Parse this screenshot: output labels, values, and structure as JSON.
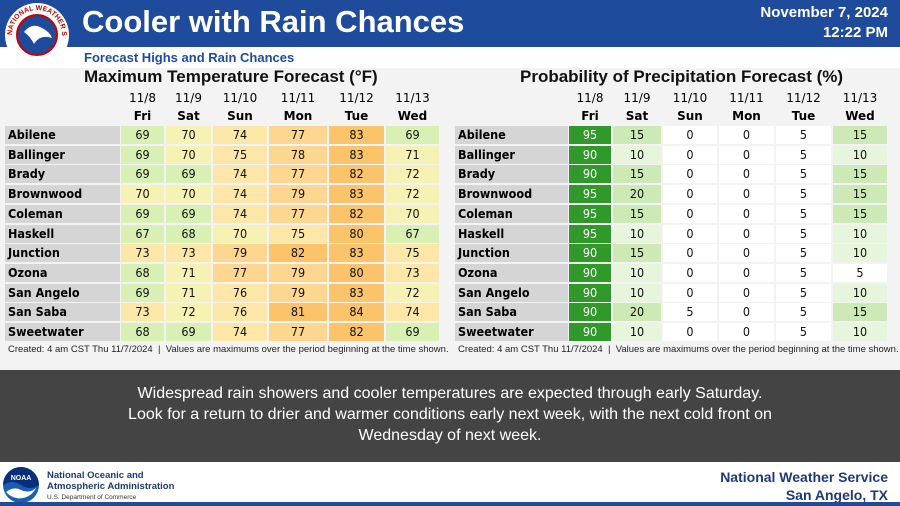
{
  "header": {
    "title": "Cooler with Rain Chances",
    "date": "November 7, 2024",
    "time": "12:22 PM",
    "subtitle": "Forecast Highs and Rain Chances",
    "logo_text": "NATIONAL WEATHER SERVICE"
  },
  "temperature_table": {
    "title": "Maximum Temperature Forecast (°F)",
    "dates": [
      "11/8",
      "11/9",
      "11/10",
      "11/11",
      "11/12",
      "11/13"
    ],
    "days": [
      "Fri",
      "Sat",
      "Sun",
      "Mon",
      "Tue",
      "Wed"
    ],
    "rows": [
      {
        "name": "Abilene",
        "values": [
          69,
          70,
          74,
          77,
          83,
          69
        ]
      },
      {
        "name": "Ballinger",
        "values": [
          69,
          70,
          75,
          78,
          83,
          71
        ]
      },
      {
        "name": "Brady",
        "values": [
          69,
          69,
          74,
          77,
          82,
          72
        ]
      },
      {
        "name": "Brownwood",
        "values": [
          70,
          70,
          74,
          79,
          83,
          72
        ]
      },
      {
        "name": "Coleman",
        "values": [
          69,
          69,
          74,
          77,
          82,
          70
        ]
      },
      {
        "name": "Haskell",
        "values": [
          67,
          68,
          70,
          75,
          80,
          67
        ]
      },
      {
        "name": "Junction",
        "values": [
          73,
          73,
          79,
          82,
          83,
          75
        ]
      },
      {
        "name": "Ozona",
        "values": [
          68,
          71,
          77,
          79,
          80,
          73
        ]
      },
      {
        "name": "San Angelo",
        "values": [
          69,
          71,
          76,
          79,
          83,
          72
        ]
      },
      {
        "name": "San Saba",
        "values": [
          73,
          72,
          76,
          81,
          84,
          74
        ]
      },
      {
        "name": "Sweetwater",
        "values": [
          68,
          69,
          74,
          77,
          82,
          69
        ]
      }
    ],
    "footnote": "Created: 4 am CST Thu 11/7/2024  |  Values are maximums over the period beginning at the time shown."
  },
  "precipitation_table": {
    "title": "Probability of Precipitation Forecast (%)",
    "dates": [
      "11/8",
      "11/9",
      "11/10",
      "11/11",
      "11/12",
      "11/13"
    ],
    "days": [
      "Fri",
      "Sat",
      "Sun",
      "Mon",
      "Tue",
      "Wed"
    ],
    "rows": [
      {
        "name": "Abilene",
        "values": [
          95,
          15,
          0,
          0,
          5,
          15
        ]
      },
      {
        "name": "Ballinger",
        "values": [
          90,
          10,
          0,
          0,
          5,
          10
        ]
      },
      {
        "name": "Brady",
        "values": [
          90,
          15,
          0,
          0,
          5,
          15
        ]
      },
      {
        "name": "Brownwood",
        "values": [
          95,
          20,
          0,
          0,
          5,
          15
        ]
      },
      {
        "name": "Coleman",
        "values": [
          95,
          15,
          0,
          0,
          5,
          15
        ]
      },
      {
        "name": "Haskell",
        "values": [
          95,
          10,
          0,
          0,
          5,
          10
        ]
      },
      {
        "name": "Junction",
        "values": [
          90,
          15,
          0,
          0,
          5,
          10
        ]
      },
      {
        "name": "Ozona",
        "values": [
          90,
          10,
          0,
          0,
          5,
          5
        ]
      },
      {
        "name": "San Angelo",
        "values": [
          90,
          10,
          0,
          0,
          5,
          10
        ]
      },
      {
        "name": "San Saba",
        "values": [
          90,
          20,
          5,
          0,
          5,
          15
        ]
      },
      {
        "name": "Sweetwater",
        "values": [
          90,
          10,
          0,
          0,
          5,
          10
        ]
      }
    ],
    "footnote": "Created: 4 am CST Thu 11/7/2024  |  Values are maximums over the period beginning at the time shown."
  },
  "summary": [
    "Widespread rain showers and cooler temperatures are expected through early Saturday.",
    "Look for a return to drier and warmer conditions early next week, with the next cold front on",
    "Wednesday of next week."
  ],
  "footer": {
    "noaa_logo": "NOAA",
    "agency_line1": "National Oceanic and",
    "agency_line2": "Atmospheric Administration",
    "department": "U.S. Department of Commerce",
    "office": "National Weather Service",
    "location": "San Angelo, TX"
  }
}
